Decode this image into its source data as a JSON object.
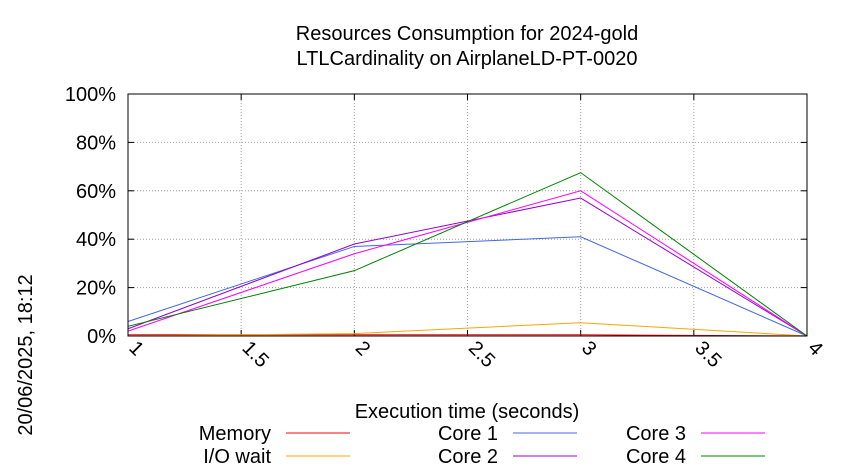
{
  "chart_data": {
    "type": "line",
    "title_lines": [
      "Resources Consumption for 2024-gold",
      "LTLCardinality on AirplaneLD-PT-0020"
    ],
    "xlabel": "Execution time (seconds)",
    "ylabel": "",
    "side_label": "20/06/2025, 18:12",
    "xlim": [
      1,
      4
    ],
    "ylim": [
      0,
      100
    ],
    "x_ticks": [
      "1",
      "1.5",
      "2",
      "2.5",
      "3",
      "3.5",
      "4"
    ],
    "y_ticks": [
      "0%",
      "20%",
      "40%",
      "60%",
      "80%",
      "100%"
    ],
    "grid": true,
    "legend_position": "bottom",
    "x": [
      1,
      2,
      3,
      4
    ],
    "series": [
      {
        "name": "Memory",
        "color": "#ff0000",
        "values": [
          0.5,
          0.5,
          0.5,
          0
        ]
      },
      {
        "name": "I/O wait",
        "color": "#ffa500",
        "values": [
          0,
          1,
          5.5,
          0
        ]
      },
      {
        "name": "Core 1",
        "color": "#4169e1",
        "values": [
          6,
          37,
          41,
          0
        ]
      },
      {
        "name": "Core 2",
        "color": "#9400d3",
        "values": [
          3,
          38,
          57,
          0
        ]
      },
      {
        "name": "Core 3",
        "color": "#ff00ff",
        "values": [
          2,
          34,
          60,
          0
        ]
      },
      {
        "name": "Core 4",
        "color": "#008000",
        "values": [
          4,
          27,
          67.5,
          0
        ]
      }
    ]
  }
}
